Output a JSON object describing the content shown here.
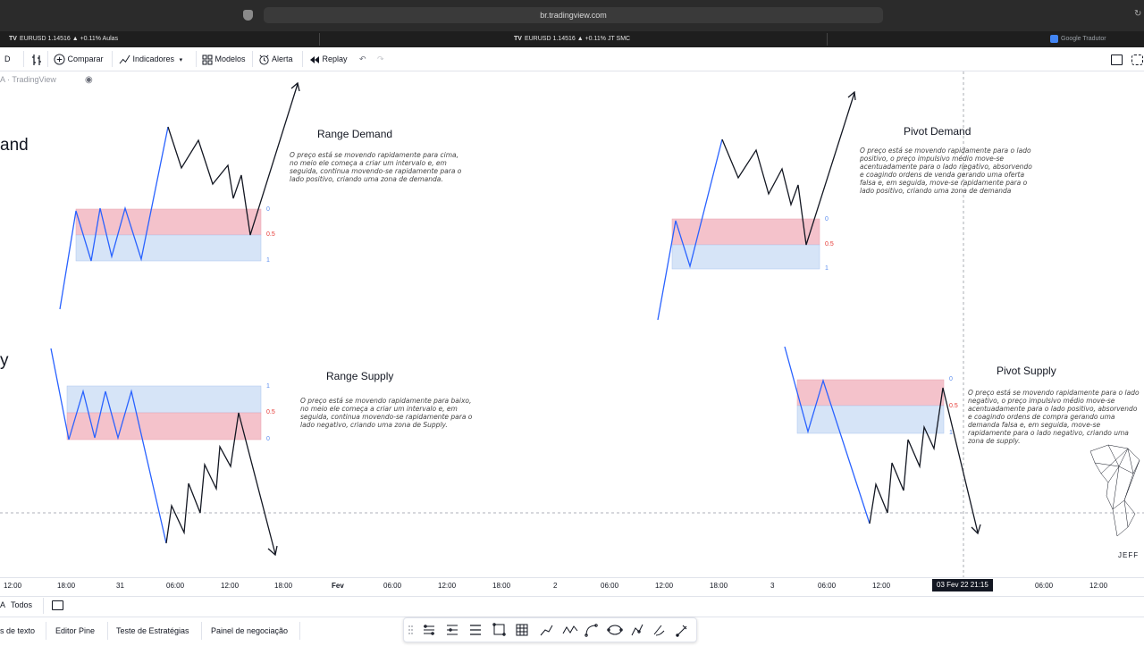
{
  "browser": {
    "url": "br.tradingview.com"
  },
  "tabs": [
    {
      "label": "EURUSD 1.14516 ▲ +0.11% Aulas"
    },
    {
      "label": "EURUSD 1.14516 ▲ +0.11% JT SMC"
    },
    {
      "label": "Google Tradutor"
    }
  ],
  "toolbar": {
    "interval": "D",
    "compare": "Comparar",
    "indicators": "Indicadores",
    "templates": "Modelos",
    "alert": "Alerta",
    "replay": "Replay"
  },
  "chart": {
    "watermark": "A · TradingView",
    "left_clip_1": "and",
    "left_clip_2": "y",
    "panels": [
      {
        "title": "Range Demand",
        "description": "O preço está se movendo rapidamente para cima, no meio ele começa a criar um intervalo e, em seguida, continua movendo-se rapidamente para o lado positivo, criando uma zona de demanda.",
        "levels": [
          "0",
          "0.5",
          "1"
        ]
      },
      {
        "title": "Pivot Demand",
        "description": "O preço está se movendo rapidamente para o lado positivo, o preço impulsivo médio move-se acentuadamente para o lado negativo, absorvendo e coagindo ordens de venda gerando uma oferta falsa e, em seguida, move-se rapidamente para o lado positivo, criando uma zona de demanda",
        "levels": [
          "0",
          "0.5",
          "1"
        ]
      },
      {
        "title": "Range Supply",
        "description": "O preço está se movendo rapidamente para baixo, no meio ele começa a criar um intervalo e, em seguida, continua movendo-se rapidamente para o lado negativo, criando uma zona de Supply.",
        "levels": [
          "1",
          "0.5",
          "0"
        ]
      },
      {
        "title": "Pivot Supply",
        "description": "O preço está se movendo rapidamente para o lado negativo, o preço impulsivo médio move-se acentuadamente para o lado positivo, absorvendo e coagindo ordens de compra gerando uma demanda falsa e, em seguida, move-se rapidamente para o lado negativo, criando uma zona de supply.",
        "levels": [
          "0",
          "0.5",
          "1"
        ]
      }
    ],
    "logo_text": "JEFF",
    "colors": {
      "supply_zone": "#f4c2cb",
      "demand_zone": "#d6e4f7",
      "blue_line": "#2962ff",
      "black_line": "#131722",
      "level_red": "#e53935",
      "level_blue": "#5b8def"
    }
  },
  "time_axis": {
    "ticks": [
      "12:00",
      "18:00",
      "31",
      "06:00",
      "12:00",
      "18:00",
      "Fev",
      "06:00",
      "12:00",
      "18:00",
      "2",
      "06:00",
      "12:00",
      "18:00",
      "3",
      "06:00",
      "12:00",
      "06:00",
      "12:00"
    ],
    "crosshair": "03 Fev 22   21:15"
  },
  "bottom": {
    "range_all": "Todos",
    "tabs": [
      "s de texto",
      "Editor Pine",
      "Teste de Estratégias",
      "Painel de negociação"
    ]
  },
  "icons": [
    "shield-icon",
    "lock-icon",
    "reload-icon",
    "tradingview-logo-icon",
    "bars-style-icon",
    "plus-circle-icon",
    "indicators-icon",
    "templates-icon",
    "alarm-icon",
    "replay-icon",
    "undo-icon",
    "redo-icon",
    "eye-icon",
    "calendar-range-icon",
    "fullscreen-icon",
    "screenshot-icon"
  ]
}
